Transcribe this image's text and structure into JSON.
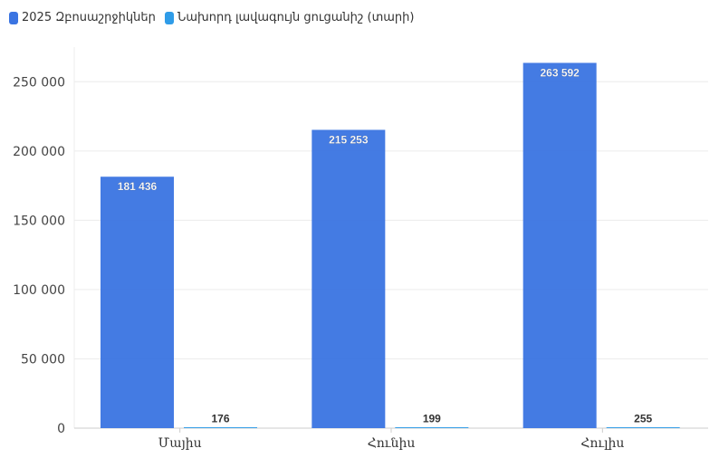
{
  "legend": {
    "series_0_label": "2025 Զբոսաշրջիկներ",
    "series_1_label": "Նախորդ լավագույն ցուցանիշ (տարի)"
  },
  "colors": {
    "series_0": "#3a74e2",
    "series_1": "#2f9ce8",
    "grid": "#ececec",
    "axis": "#cccccc"
  },
  "chart_data": {
    "type": "bar",
    "categories": [
      "Մայիս",
      "Հունիս",
      "Հուլիս"
    ],
    "series": [
      {
        "name": "2025 Զբոսաշրջիկներ",
        "values": [
          181436,
          215253,
          263592
        ],
        "labels": [
          "181 436",
          "215 253",
          "263 592"
        ]
      },
      {
        "name": "Նախորդ լավագույն ցուցանիշ (տարի)",
        "values": [
          176,
          199,
          255
        ],
        "labels": [
          "176",
          "199",
          "255"
        ]
      }
    ],
    "ylim": [
      0,
      275000
    ],
    "yticks": [
      0,
      50000,
      100000,
      150000,
      200000,
      250000
    ],
    "ytick_labels": [
      "0",
      "50 000",
      "100 000",
      "150 000",
      "200 000",
      "250 000"
    ],
    "grid": true,
    "legend_position": "top-left"
  }
}
